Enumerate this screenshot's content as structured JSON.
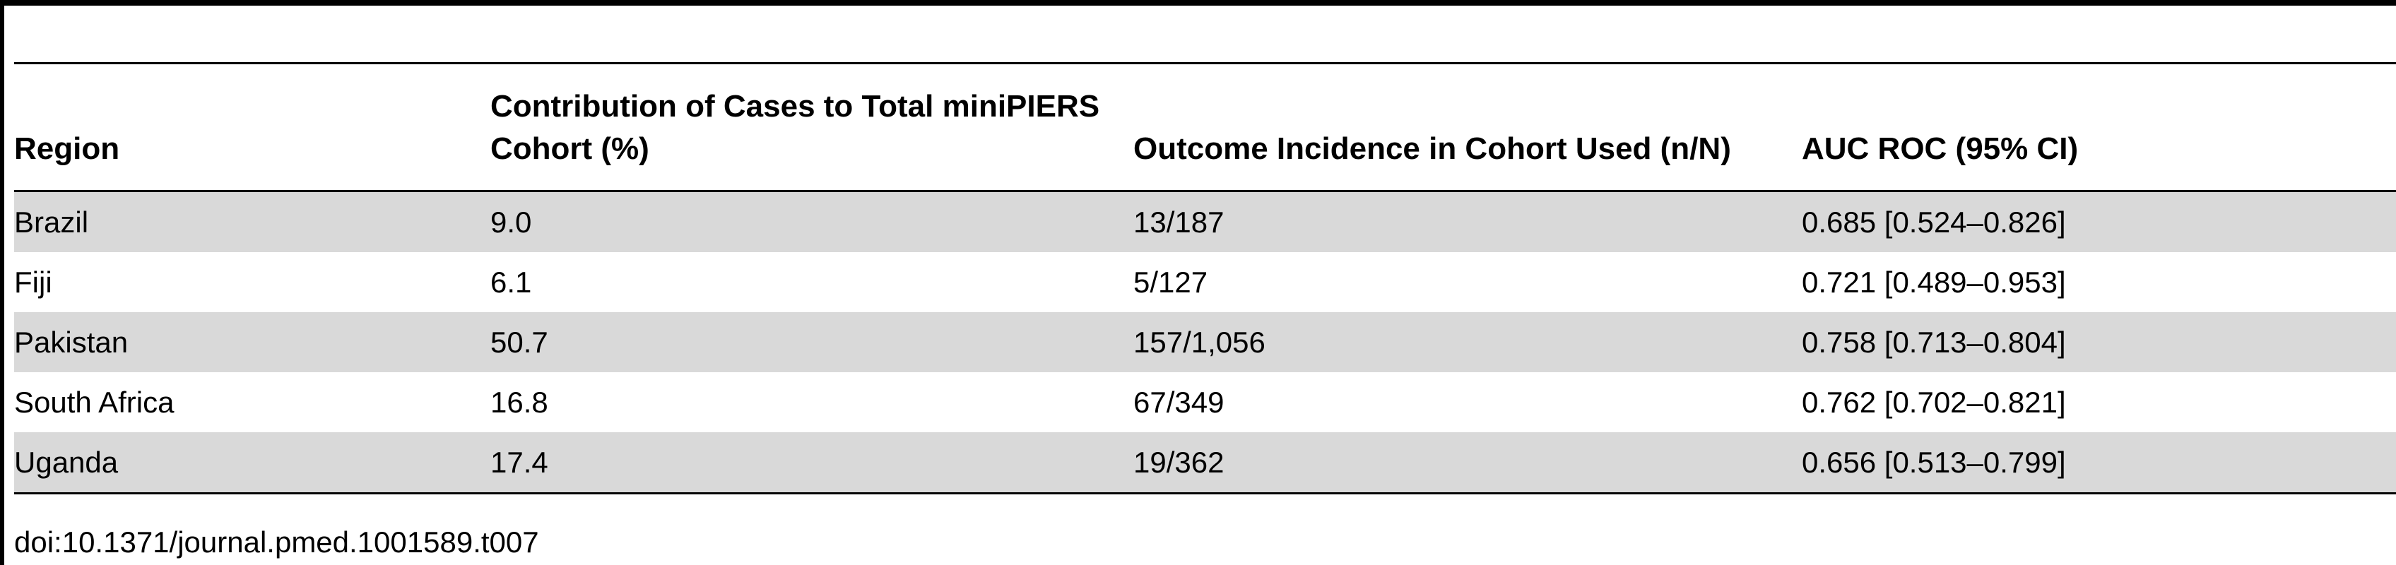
{
  "table": {
    "headers": [
      "Region",
      "Contribution of Cases to Total miniPIERS Cohort (%)",
      "Outcome Incidence in Cohort Used (n/N)",
      "AUC ROC (95% CI)"
    ],
    "rows": [
      [
        "Brazil",
        "9.0",
        "13/187",
        "0.685 [0.524–0.826]"
      ],
      [
        "Fiji",
        "6.1",
        "5/127",
        "0.721 [0.489–0.953]"
      ],
      [
        "Pakistan",
        "50.7",
        "157/1,056",
        "0.758 [0.713–0.804]"
      ],
      [
        "South Africa",
        "16.8",
        "67/349",
        "0.762 [0.702–0.821]"
      ],
      [
        "Uganda",
        "17.4",
        "19/362",
        "0.656 [0.513–0.799]"
      ]
    ]
  },
  "footnote": "doi:10.1371/journal.pmed.1001589.t007",
  "colors": {
    "shaded_row": "#d9d9d9",
    "rule": "#000000"
  }
}
